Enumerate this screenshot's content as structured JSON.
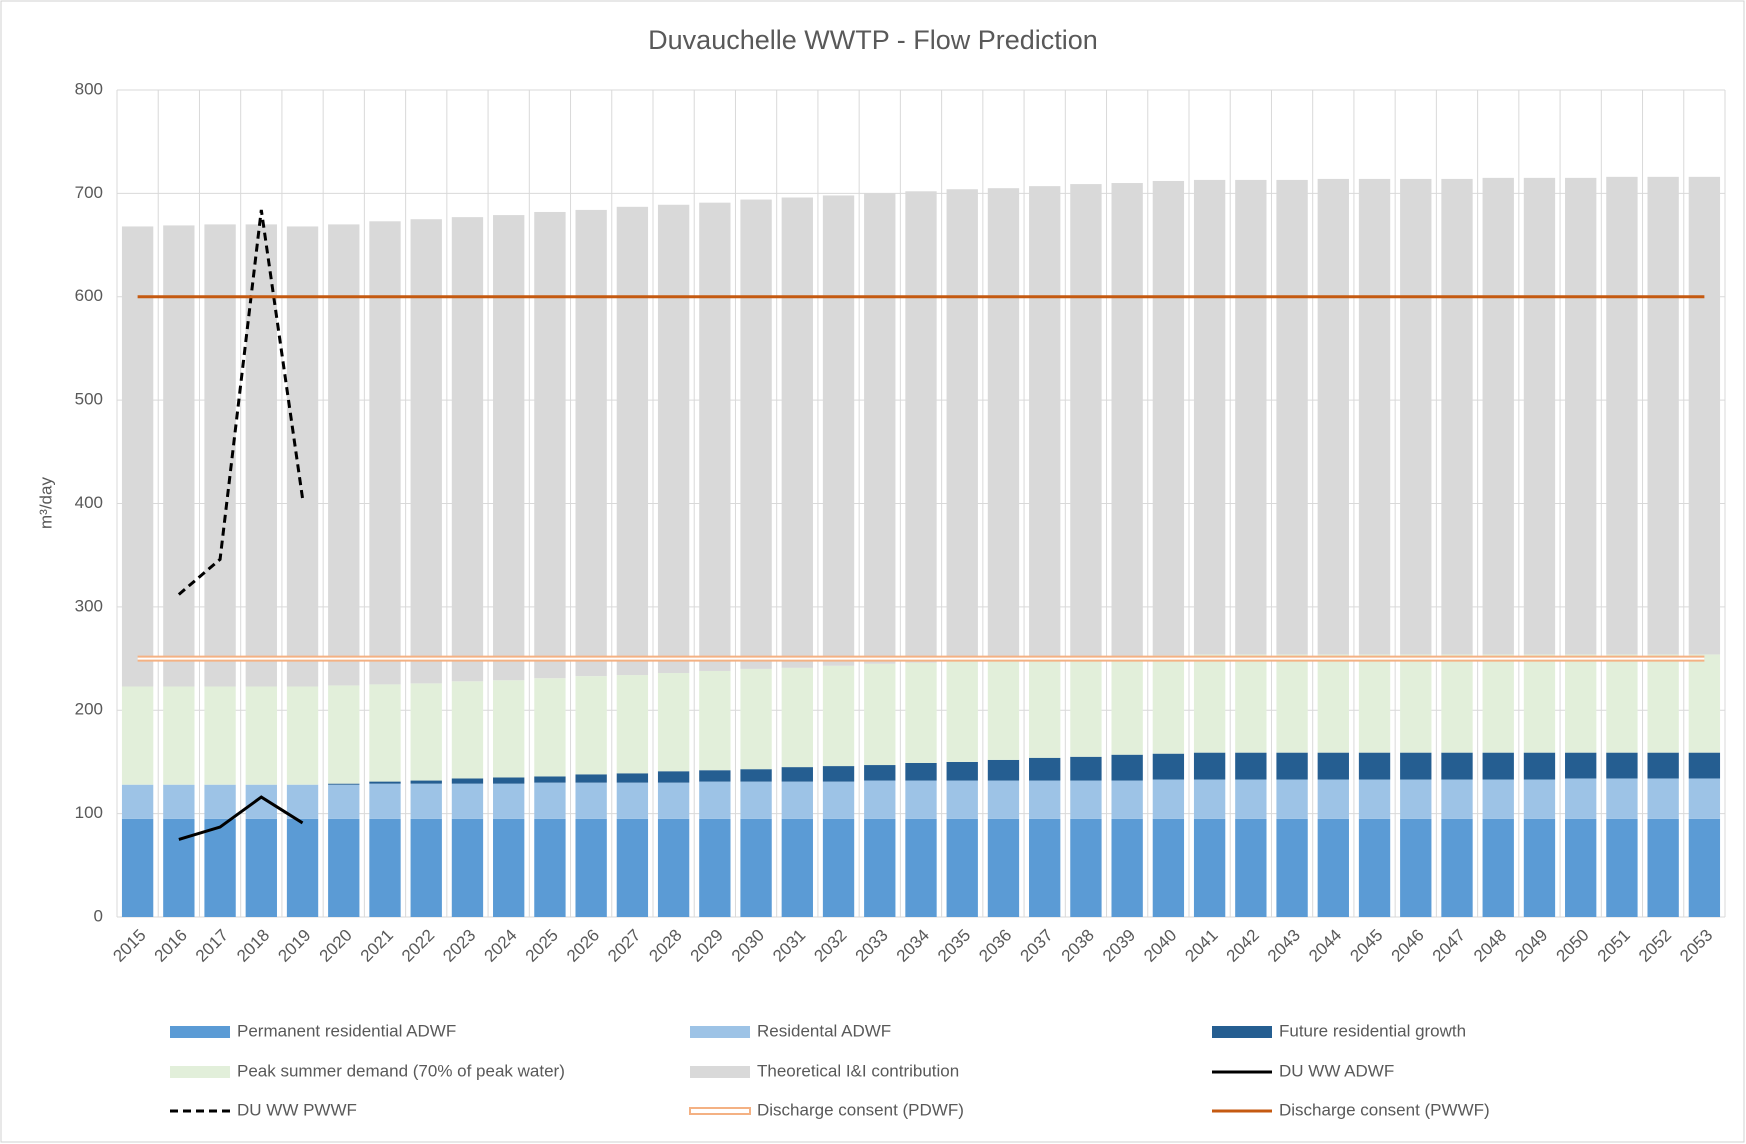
{
  "chart_data": {
    "type": "bar",
    "title": "Duvauchelle WWTP - Flow Prediction",
    "y_label": "m³/day",
    "categories": [
      "2015",
      "2016",
      "2017",
      "2018",
      "2019",
      "2020",
      "2021",
      "2022",
      "2023",
      "2024",
      "2025",
      "2026",
      "2027",
      "2028",
      "2029",
      "2030",
      "2031",
      "2032",
      "2033",
      "2034",
      "2035",
      "2036",
      "2037",
      "2038",
      "2039",
      "2040",
      "2041",
      "2042",
      "2043",
      "2044",
      "2045",
      "2046",
      "2047",
      "2048",
      "2049",
      "2050",
      "2051",
      "2052",
      "2053"
    ],
    "ylim": [
      0,
      800
    ],
    "yticks": [
      0,
      100,
      200,
      300,
      400,
      500,
      600,
      700,
      800
    ],
    "grid": true,
    "stacked": true,
    "series": [
      {
        "name": "Permanent residential ADWF",
        "type": "bar",
        "color": "#5b9bd5",
        "values": [
          95,
          95,
          95,
          95,
          95,
          95,
          95,
          95,
          95,
          95,
          95,
          95,
          95,
          95,
          95,
          95,
          95,
          95,
          95,
          95,
          95,
          95,
          95,
          95,
          95,
          95,
          95,
          95,
          95,
          95,
          95,
          95,
          95,
          95,
          95,
          95,
          95,
          95,
          95
        ]
      },
      {
        "name": "Residental ADWF",
        "type": "bar",
        "color": "#9dc3e6",
        "values": [
          33,
          33,
          33,
          33,
          33,
          33,
          34,
          34,
          34,
          34,
          35,
          35,
          35,
          35,
          36,
          36,
          36,
          36,
          37,
          37,
          37,
          37,
          37,
          37,
          37,
          38,
          38,
          38,
          38,
          38,
          38,
          38,
          38,
          38,
          38,
          39,
          39,
          39,
          39
        ]
      },
      {
        "name": "Future residential growth",
        "type": "bar",
        "color": "#255e91",
        "values": [
          0,
          0,
          0,
          0,
          0,
          1,
          2,
          3,
          5,
          6,
          6,
          8,
          9,
          11,
          11,
          12,
          14,
          15,
          15,
          17,
          18,
          20,
          22,
          23,
          25,
          25,
          26,
          26,
          26,
          26,
          26,
          26,
          26,
          26,
          26,
          25,
          25,
          25,
          25
        ]
      },
      {
        "name": "Peak summer demand (70% of peak water)",
        "type": "bar",
        "color": "#e2efda",
        "values": [
          95,
          95,
          95,
          95,
          95,
          95,
          94,
          94,
          94,
          94,
          95,
          95,
          95,
          95,
          96,
          97,
          96,
          97,
          98,
          97,
          98,
          97,
          96,
          96,
          95,
          95,
          95,
          95,
          95,
          95,
          95,
          95,
          95,
          95,
          95,
          95,
          95,
          95,
          95
        ]
      },
      {
        "name": "Theoretical I&I contribution",
        "type": "bar",
        "color": "#d9d9d9",
        "values": [
          445,
          446,
          447,
          447,
          445,
          446,
          448,
          449,
          449,
          450,
          451,
          451,
          453,
          453,
          453,
          454,
          455,
          455,
          455,
          456,
          456,
          456,
          457,
          458,
          458,
          459,
          459,
          459,
          459,
          460,
          460,
          460,
          460,
          461,
          461,
          461,
          462,
          462,
          462
        ]
      },
      {
        "name": "DU WW ADWF",
        "type": "line",
        "color": "#000000",
        "values": [
          null,
          75,
          87,
          116,
          91,
          null,
          null,
          null,
          null,
          null,
          null,
          null,
          null,
          null,
          null,
          null,
          null,
          null,
          null,
          null,
          null,
          null,
          null,
          null,
          null,
          null,
          null,
          null,
          null,
          null,
          null,
          null,
          null,
          null,
          null,
          null,
          null,
          null,
          null
        ]
      },
      {
        "name": "DU WW PWWF",
        "type": "line",
        "dash": true,
        "color": "#000000",
        "values": [
          null,
          312,
          346,
          684,
          405,
          null,
          null,
          null,
          null,
          null,
          null,
          null,
          null,
          null,
          null,
          null,
          null,
          null,
          null,
          null,
          null,
          null,
          null,
          null,
          null,
          null,
          null,
          null,
          null,
          null,
          null,
          null,
          null,
          null,
          null,
          null,
          null,
          null,
          null
        ]
      },
      {
        "name": "Discharge consent (PDWF)",
        "type": "line",
        "double": true,
        "color": "#f4b183",
        "values": [
          250,
          250,
          250,
          250,
          250,
          250,
          250,
          250,
          250,
          250,
          250,
          250,
          250,
          250,
          250,
          250,
          250,
          250,
          250,
          250,
          250,
          250,
          250,
          250,
          250,
          250,
          250,
          250,
          250,
          250,
          250,
          250,
          250,
          250,
          250,
          250,
          250,
          250,
          250
        ]
      },
      {
        "name": "Discharge consent (PWWF)",
        "type": "line",
        "color": "#c55a11",
        "values": [
          600,
          600,
          600,
          600,
          600,
          600,
          600,
          600,
          600,
          600,
          600,
          600,
          600,
          600,
          600,
          600,
          600,
          600,
          600,
          600,
          600,
          600,
          600,
          600,
          600,
          600,
          600,
          600,
          600,
          600,
          600,
          600,
          600,
          600,
          600,
          600,
          600,
          600,
          600
        ]
      }
    ]
  }
}
